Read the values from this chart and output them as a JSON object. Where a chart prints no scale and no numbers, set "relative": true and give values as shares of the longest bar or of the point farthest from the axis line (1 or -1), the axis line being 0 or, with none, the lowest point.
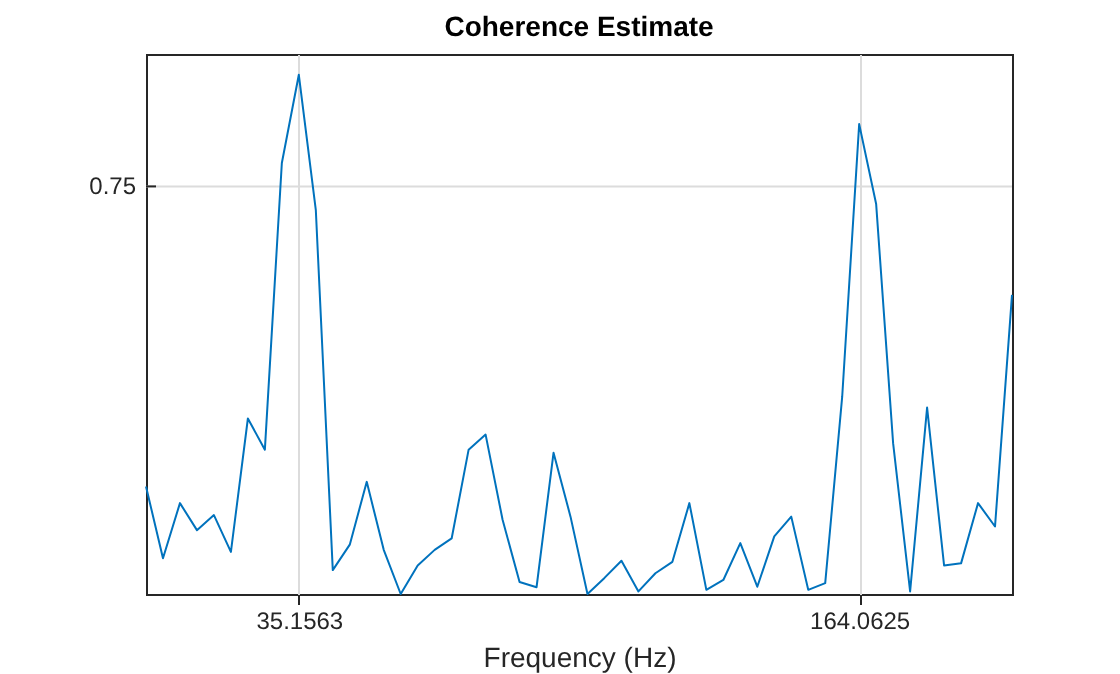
{
  "chart_data": {
    "type": "line",
    "title": "Coherence Estimate",
    "xlabel": "Frequency (Hz)",
    "relative": true,
    "x": [
      0,
      3.90625,
      7.8125,
      11.71875,
      15.625,
      19.53125,
      23.4375,
      27.34375,
      31.25,
      35.15625,
      39.0625,
      42.96875,
      46.875,
      50.78125,
      54.6875,
      58.59375,
      62.5,
      66.40625,
      70.3125,
      74.21875,
      78.125,
      82.03125,
      85.9375,
      89.84375,
      93.75,
      97.65625,
      101.5625,
      105.46875,
      109.375,
      113.28125,
      117.1875,
      121.09375,
      125,
      128.90625,
      132.8125,
      136.71875,
      140.625,
      144.53125,
      148.4375,
      152.34375,
      156.25,
      160.15625,
      164.0625,
      167.96875,
      171.875,
      175.78125,
      179.6875,
      183.59375,
      187.5,
      191.40625,
      195.3125,
      199.21875
    ],
    "series": [
      {
        "color": "#0072bd",
        "values": [
          0.207,
          0.069,
          0.175,
          0.123,
          0.152,
          0.081,
          0.338,
          0.278,
          0.83,
          1,
          0.74,
          0.046,
          0.095,
          0.216,
          0.085,
          0,
          0.055,
          0.085,
          0.107,
          0.278,
          0.307,
          0.143,
          0.023,
          0.013,
          0.272,
          0.149,
          0,
          0.031,
          0.064,
          0.005,
          0.04,
          0.062,
          0.175,
          0.008,
          0.027,
          0.098,
          0.014,
          0.111,
          0.149,
          0.008,
          0.021,
          0.38,
          0.905,
          0.751,
          0.29,
          0.005,
          0.359,
          0.055,
          0.059,
          0.175,
          0.13,
          0.576
        ]
      }
    ],
    "xlim": [
      0,
      199.21875
    ],
    "xticks": [
      {
        "value": 35.15625,
        "label": "35.1563"
      },
      164.0625
    ],
    "ref_lines": [
      {
        "axis": "y",
        "value": 0.785,
        "color": "#dcdcdc"
      }
    ],
    "annotations": [
      "0.75"
    ],
    "grid": "x",
    "marker": "none",
    "line_style": "solid"
  }
}
